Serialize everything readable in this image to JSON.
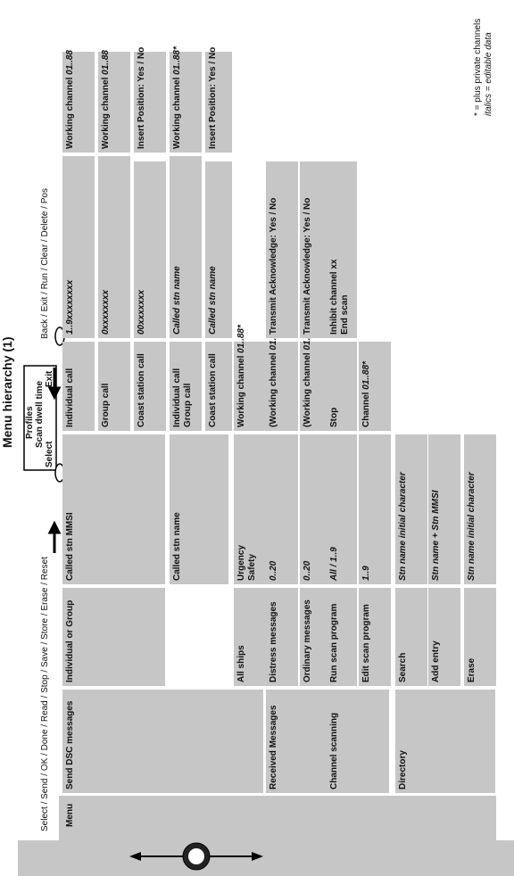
{
  "title": "Menu hierarchy (1)",
  "dialog": {
    "lines": [
      "Profiles",
      "Scan dwell time"
    ],
    "select": "Select",
    "exit": "Exit"
  },
  "keys_left": "Select / Send / OK / Done / Read / Stop / Save / Store / Erase / Reset",
  "keys_right": "Back / Exit / Run / Clear / Delete / Pos",
  "notes": [
    "* = plus private channels",
    "italics = editable data"
  ],
  "cells": [
    {
      "text": "Menu"
    },
    {
      "text": "Send DSC messages"
    },
    {
      "text": "Individual or Group"
    },
    {
      "text": "Called stn MMSI"
    },
    {
      "text": "Individual call"
    },
    {
      "text": "",
      "italic": "1..9xxxxxxxx"
    },
    {
      "text": "Working channel ",
      "italic": "01..88"
    },
    {
      "text": "Group call"
    },
    {
      "text": "",
      "italic": "0xxxxxxxx"
    },
    {
      "text": "Working channel ",
      "italic": "01..88"
    },
    {
      "text": "Coast station call"
    },
    {
      "text": "",
      "italic": "00xxxxxxx"
    },
    {
      "text": "Insert Position: Yes / No"
    },
    {
      "text": "Called stn name"
    },
    {
      "text": "Individual call"
    },
    {
      "text": "Group call"
    },
    {
      "text": "",
      "italic": "Called stn name"
    },
    {
      "text": "Working channel ",
      "italic": "01..88*"
    },
    {
      "text": "Coast station call"
    },
    {
      "text": "",
      "italic": "Called stn name"
    },
    {
      "text": "Insert Position: Yes / No"
    },
    {
      "text": "All ships"
    },
    {
      "text": "Urgency"
    },
    {
      "text": "Safety"
    },
    {
      "text": "Working channel ",
      "italic": "01..88*"
    },
    {
      "text": "Received Messages"
    },
    {
      "text": "Distress messages"
    },
    {
      "text": "",
      "italic": "0..20"
    },
    {
      "text": "(Working channel ",
      "italic": "01..88*)"
    },
    {
      "text": "Transmit Acknowledge: Yes / No"
    },
    {
      "text": "Ordinary messages"
    },
    {
      "text": "",
      "italic": "0..20"
    },
    {
      "text": "(Working channel ",
      "italic": "01..88*)"
    },
    {
      "text": "Transmit Acknowledge: Yes / No"
    },
    {
      "text": "Channel scanning"
    },
    {
      "text": "Run scan program"
    },
    {
      "text": "",
      "italic": "All / 1..9"
    },
    {
      "text": "Stop"
    },
    {
      "text": "Inhibit channel xx"
    },
    {
      "text": "End scan"
    },
    {
      "text": "Edit scan program"
    },
    {
      "text": "",
      "italic": "1..9"
    },
    {
      "text": "Channel ",
      "italic": "01..88*"
    },
    {
      "text": "Directory"
    },
    {
      "text": "Search"
    },
    {
      "text": "",
      "italic": "Stn name initial character"
    },
    {
      "text": "Add entry"
    },
    {
      "text": "",
      "italic": "Stn name + Stn MMSI"
    },
    {
      "text": "Erase"
    },
    {
      "text": "",
      "italic": "Stn name initial character"
    }
  ]
}
